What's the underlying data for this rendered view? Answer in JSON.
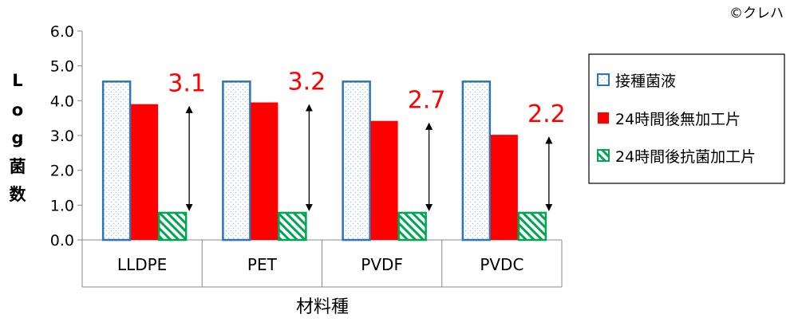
{
  "credit": "©クレハ",
  "chart_data": {
    "type": "bar",
    "categories": [
      "LLDPE",
      "PET",
      "PVDF",
      "PVDC"
    ],
    "series": [
      {
        "name": "接種菌液",
        "values": [
          4.55,
          4.55,
          4.55,
          4.55
        ],
        "color": "#2e75b6",
        "pattern": "dots"
      },
      {
        "name": "24時間後無加工片",
        "values": [
          3.9,
          3.95,
          3.42,
          3.02
        ],
        "color": "#ff0000",
        "pattern": "solid"
      },
      {
        "name": "24時間後抗菌加工片",
        "values": [
          0.78,
          0.78,
          0.78,
          0.78
        ],
        "color": "#00a651",
        "pattern": "hatch"
      }
    ],
    "reduction_labels": [
      "3.1",
      "3.2",
      "2.7",
      "2.2"
    ],
    "y_ticks": [
      "0.0",
      "1.0",
      "2.0",
      "3.0",
      "4.0",
      "5.0",
      "6.0"
    ],
    "ylim": [
      0,
      6
    ],
    "ylabel": "Log菌数",
    "xlabel": "材料種",
    "legend_position": "right"
  }
}
